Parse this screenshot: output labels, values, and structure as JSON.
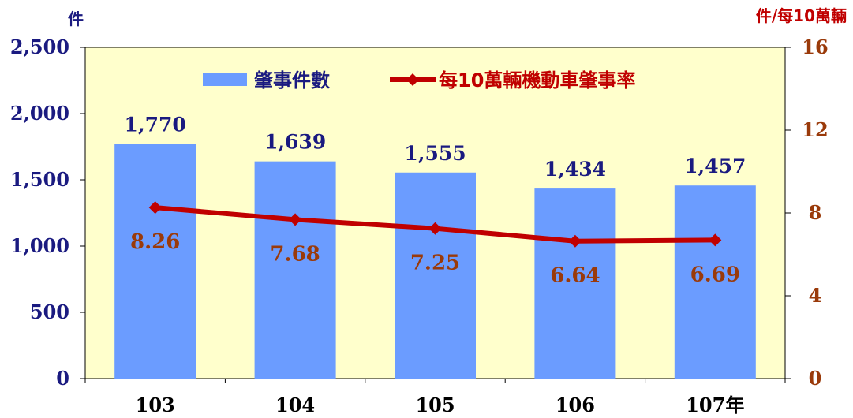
{
  "chart_data": {
    "type": "bar",
    "categories": [
      "103",
      "104",
      "105",
      "106",
      "107年"
    ],
    "series": [
      {
        "name": "肇事件數",
        "type": "bar",
        "axis": "left",
        "color": "#6b9cff",
        "values": [
          1770,
          1639,
          1555,
          1434,
          1457
        ],
        "labels": [
          "1,770",
          "1,639",
          "1,555",
          "1,434",
          "1,457"
        ]
      },
      {
        "name": "每10萬輛機動車肇事率",
        "type": "line",
        "axis": "right",
        "color": "#c00000",
        "values": [
          8.26,
          7.68,
          7.25,
          6.64,
          6.69
        ],
        "labels": [
          "8.26",
          "7.68",
          "7.25",
          "6.64",
          "6.69"
        ]
      }
    ],
    "y_left": {
      "unit": "件",
      "min": 0,
      "max": 2500,
      "ticks": [
        0,
        500,
        1000,
        1500,
        2000,
        2500
      ],
      "tick_labels": [
        "0",
        "500",
        "1,000",
        "1,500",
        "2,000",
        "2,500"
      ]
    },
    "y_right": {
      "unit": "件/每10萬輛",
      "min": 0,
      "max": 16,
      "ticks": [
        0,
        4,
        8,
        12,
        16
      ],
      "tick_labels": [
        "0",
        "4",
        "8",
        "12",
        "16"
      ]
    },
    "legend_position": "top-center",
    "grid": false,
    "plot_background": "#ffffcc"
  }
}
